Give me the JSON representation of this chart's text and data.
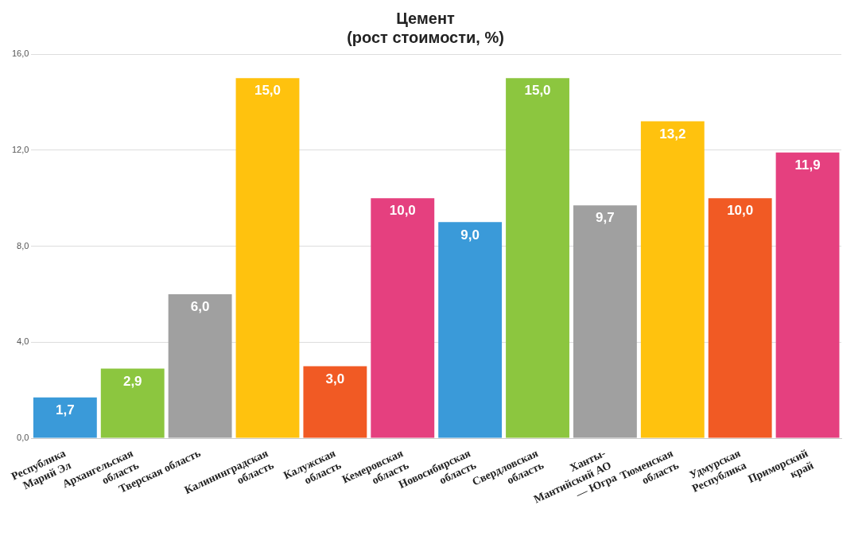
{
  "chart_data": {
    "type": "bar",
    "title": "Цемент",
    "subtitle": "(рост стоимости, %)",
    "categories": [
      "Республика\nМарий Эл",
      "Архангельская\nобласть",
      "Тверская область",
      "Калининградская\nобласть",
      "Калужская\nобласть",
      "Кемеровская\nобласть",
      "Новосибирская\nобласть",
      "Свердловская\nобласть",
      "Ханты-\nМантийский АО\n— Югра",
      "Тюменская\nобласть",
      "Удмурская\nРеспублика",
      "Приморский\nкрай"
    ],
    "values": [
      1.7,
      2.9,
      6.0,
      15.0,
      3.0,
      10.0,
      9.0,
      15.0,
      9.7,
      13.2,
      10.0,
      11.9
    ],
    "colors": [
      "#3a9ad9",
      "#8cc63f",
      "#a0a0a0",
      "#ffc20e",
      "#f15a24",
      "#e5407f",
      "#3a9ad9",
      "#8cc63f",
      "#a0a0a0",
      "#ffc20e",
      "#f15a24",
      "#e5407f"
    ],
    "value_labels": [
      "1,7",
      "2,9",
      "6,0",
      "15,0",
      "3,0",
      "10,0",
      "9,0",
      "15,0",
      "9,7",
      "13,2",
      "10,0",
      "11,9"
    ],
    "ylim": [
      0,
      16
    ],
    "yticks": [
      {
        "value": 0,
        "label": "0,0"
      },
      {
        "value": 4,
        "label": "4,0"
      },
      {
        "value": 8,
        "label": "8,0"
      },
      {
        "value": 12,
        "label": "12,0"
      },
      {
        "value": 16,
        "label": "16,0"
      }
    ],
    "grid": "y"
  }
}
